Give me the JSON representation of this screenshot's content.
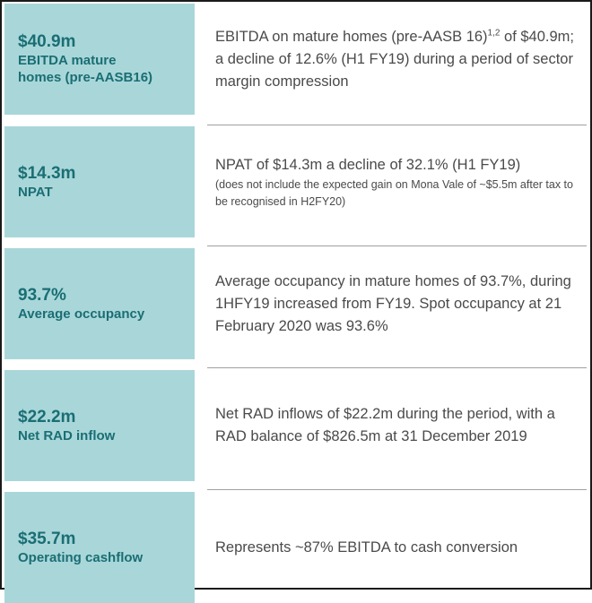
{
  "rows": [
    {
      "value": "$40.9m",
      "label_lines": [
        "EBITDA mature",
        "homes (pre-AASB16)"
      ],
      "desc_pre": "EBITDA on mature homes (pre-AASB 16)",
      "desc_sup": "1,2",
      "desc_post": " of $40.9m; a decline of 12.6% (H1 FY19) during a period of sector margin compression"
    },
    {
      "value": "$14.3m",
      "label": "NPAT",
      "desc": "NPAT of $14.3m a decline of 32.1% (H1 FY19)",
      "note": "(does not include the expected gain on Mona Vale of ~$5.5m after tax to be recognised in H2FY20)"
    },
    {
      "value": "93.7%",
      "label": "Average occupancy",
      "desc": "Average occupancy in mature homes of 93.7%, during 1HFY19 increased from FY19. Spot occupancy at 21 February 2020 was 93.6%"
    },
    {
      "value": "$22.2m",
      "label": "Net RAD inflow",
      "desc": "Net RAD inflows of $22.2m during the period, with a RAD balance of $826.5m at 31 December 2019"
    },
    {
      "value": "$35.7m",
      "label": "Operating cashflow",
      "desc": "Represents ~87% EBITDA to cash conversion"
    }
  ],
  "colors": {
    "kpi_background": "#a9d7d9",
    "kpi_text": "#1a6e74",
    "body_text": "#4a4a4a",
    "divider": "#a0a0a0"
  }
}
